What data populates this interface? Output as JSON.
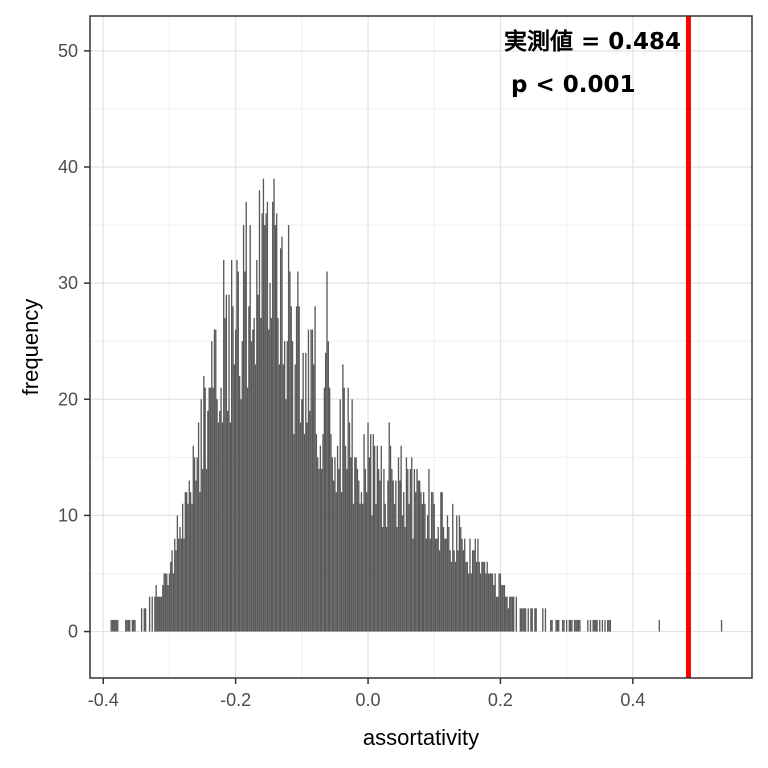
{
  "chart_data": {
    "type": "bar",
    "xlabel": "assortativity",
    "ylabel": "frequency",
    "xlim": [
      -0.42,
      0.58
    ],
    "ylim": [
      -4,
      53
    ],
    "x_ticks": [
      -0.4,
      -0.2,
      0.0,
      0.2,
      0.4
    ],
    "x_tick_labels": [
      "-0.4",
      "-0.2",
      "0.0",
      "0.2",
      "0.4"
    ],
    "y_ticks": [
      0,
      10,
      20,
      30,
      40,
      50
    ],
    "y_tick_labels": [
      "0",
      "10",
      "20",
      "30",
      "40",
      "50"
    ],
    "bar_color": "#595959",
    "observed_line": {
      "value": 0.484,
      "color": "#ff0000"
    },
    "annotations": [
      "実測値 = 0.484",
      "p < 0.001"
    ],
    "grid": true,
    "histogram": {
      "bin_width": 0.002,
      "profile_x": [
        -0.392,
        -0.37,
        -0.35,
        -0.33,
        -0.31,
        -0.29,
        -0.27,
        -0.25,
        -0.23,
        -0.21,
        -0.19,
        -0.17,
        -0.15,
        -0.13,
        -0.11,
        -0.09,
        -0.07,
        -0.05,
        -0.03,
        -0.01,
        0.01,
        0.03,
        0.05,
        0.07,
        0.09,
        0.11,
        0.13,
        0.15,
        0.17,
        0.19,
        0.21,
        0.23,
        0.25,
        0.27,
        0.29,
        0.31,
        0.33,
        0.35,
        0.37,
        0.39,
        0.41
      ],
      "profile_y": [
        1,
        1,
        1.5,
        2.5,
        4,
        7,
        12,
        18,
        24,
        29,
        31,
        32,
        33,
        30,
        27,
        24,
        22,
        20,
        18,
        16.5,
        15,
        14.5,
        13.5,
        12.5,
        11.5,
        10,
        9,
        7.5,
        6,
        4.5,
        3.5,
        2.5,
        2,
        1.5,
        1.2,
        1,
        0.8,
        0.6,
        0.5,
        0.4,
        0.3
      ],
      "outliers": [
        [
          0.44,
          1
        ],
        [
          0.534,
          1
        ]
      ]
    }
  }
}
